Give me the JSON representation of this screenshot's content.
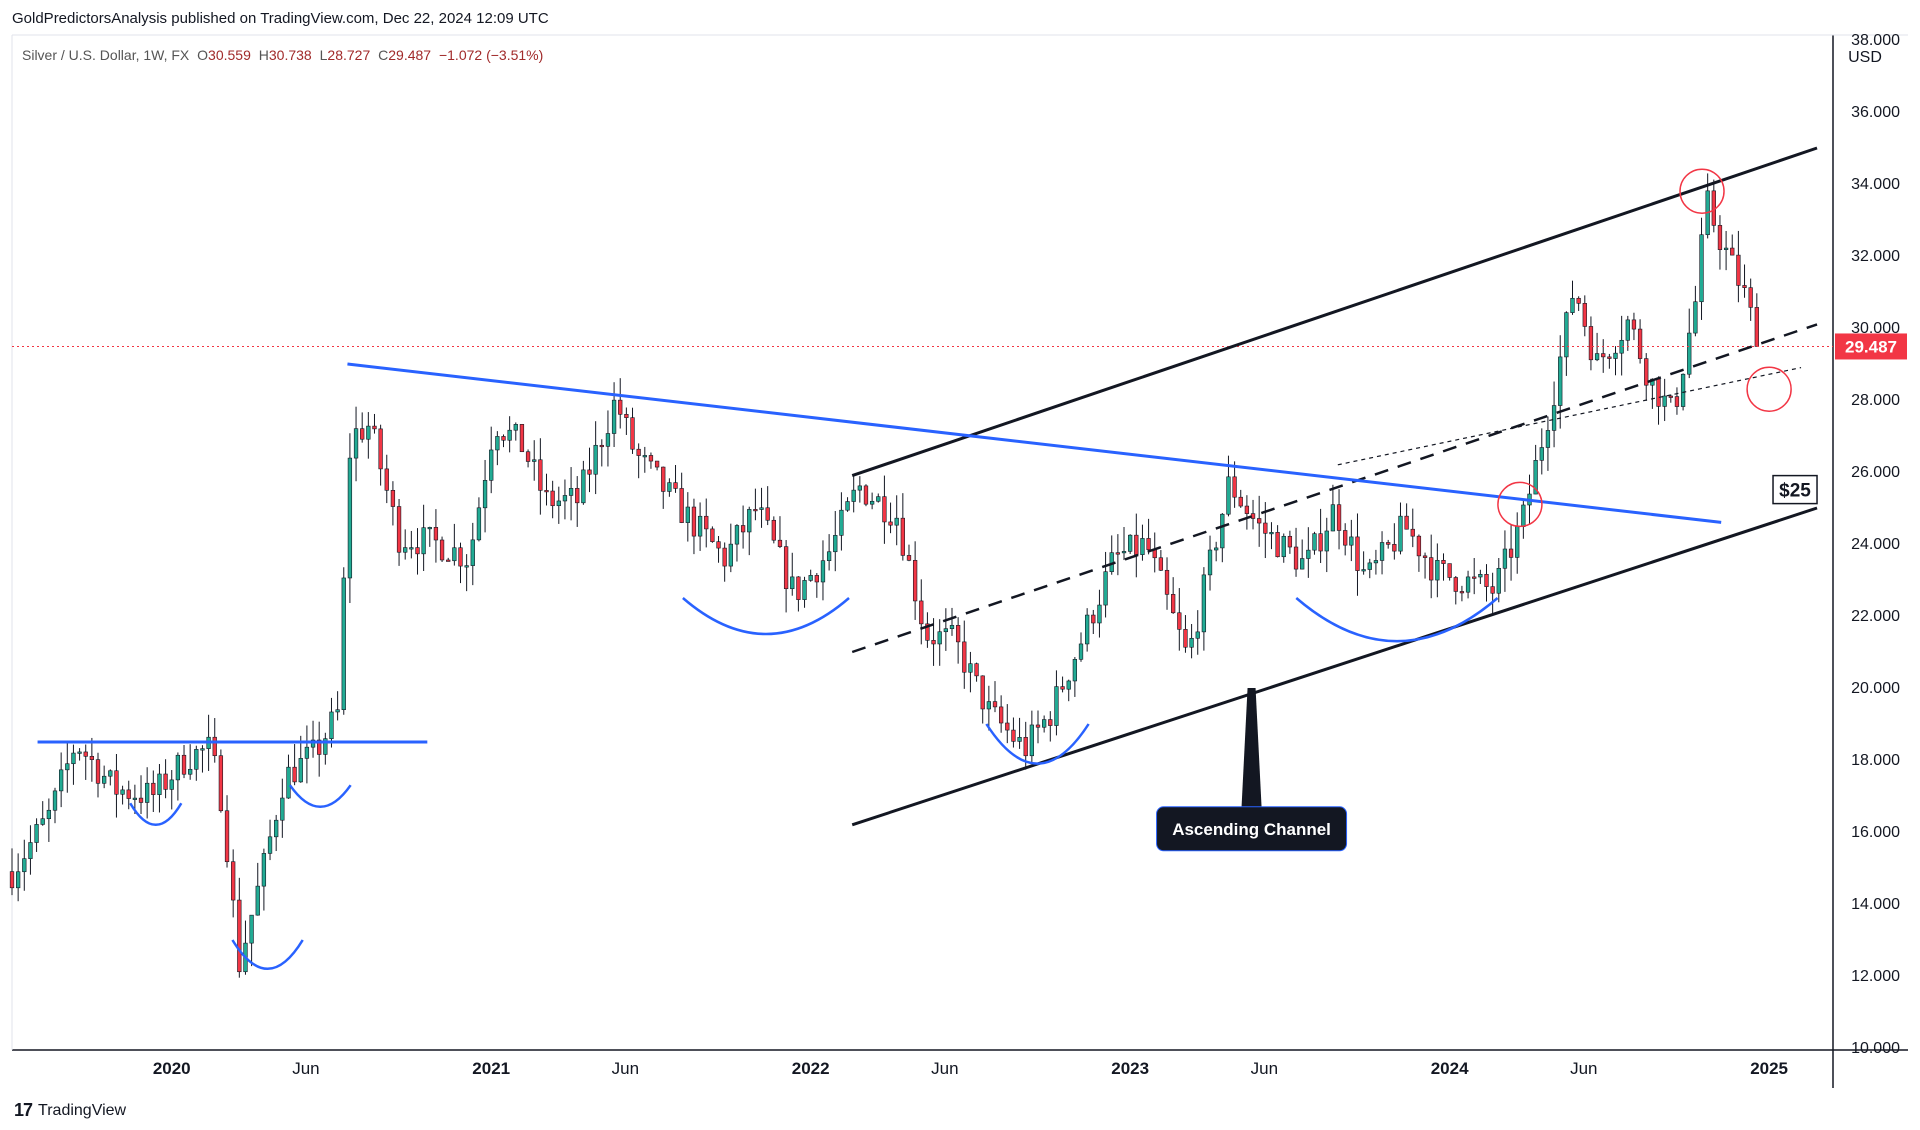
{
  "header": {
    "published": "GoldPredictorsAnalysis published on TradingView.com, Dec 22, 2024 12:09 UTC"
  },
  "legend": {
    "symbol": "Silver / U.S. Dollar, 1W, FX",
    "o_label": "O",
    "o": "30.559",
    "h_label": "H",
    "h": "30.738",
    "l_label": "L",
    "l": "28.727",
    "c_label": "C",
    "c": "29.487",
    "change": "−1.072 (−3.51%)"
  },
  "footer": {
    "brand": "TradingView",
    "logo": "17"
  },
  "colors": {
    "up": "#22ab94",
    "down": "#f23645",
    "pattern": "#2962ff",
    "channel": "#131722",
    "price_line": "#f23645",
    "highlight": "#f23645"
  },
  "chart_data": {
    "type": "candlestick",
    "currency": "USD",
    "ylim": [
      10,
      38
    ],
    "yticks": [
      "10.000",
      "12.000",
      "14.000",
      "16.000",
      "18.000",
      "20.000",
      "22.000",
      "24.000",
      "26.000",
      "28.000",
      "30.000",
      "32.000",
      "34.000",
      "36.000",
      "38.000"
    ],
    "xlim": [
      2019.5,
      2025.2
    ],
    "xticks": [
      {
        "x": 2020.0,
        "label": "2020",
        "major": true
      },
      {
        "x": 2020.42,
        "label": "Jun",
        "major": false
      },
      {
        "x": 2021.0,
        "label": "2021",
        "major": true
      },
      {
        "x": 2021.42,
        "label": "Jun",
        "major": false
      },
      {
        "x": 2022.0,
        "label": "2022",
        "major": true
      },
      {
        "x": 2022.42,
        "label": "Jun",
        "major": false
      },
      {
        "x": 2023.0,
        "label": "2023",
        "major": true
      },
      {
        "x": 2023.42,
        "label": "Jun",
        "major": false
      },
      {
        "x": 2024.0,
        "label": "2024",
        "major": true
      },
      {
        "x": 2024.42,
        "label": "Jun",
        "major": false
      },
      {
        "x": 2025.0,
        "label": "2025",
        "major": true
      }
    ],
    "last_price": 29.487,
    "last_price_label": "29.487",
    "anchors": [
      [
        2019.5,
        14.9
      ],
      [
        2019.62,
        16.5
      ],
      [
        2019.7,
        18.5
      ],
      [
        2019.82,
        17.2
      ],
      [
        2019.94,
        17.0
      ],
      [
        2020.05,
        18.1
      ],
      [
        2020.12,
        18.3
      ],
      [
        2020.16,
        16.8
      ],
      [
        2020.21,
        12.3
      ],
      [
        2020.29,
        15.1
      ],
      [
        2020.35,
        17.5
      ],
      [
        2020.45,
        18.2
      ],
      [
        2020.52,
        19.3
      ],
      [
        2020.56,
        27.0
      ],
      [
        2020.62,
        27.3
      ],
      [
        2020.71,
        24.2
      ],
      [
        2020.84,
        24.0
      ],
      [
        2020.93,
        23.6
      ],
      [
        2021.01,
        27.4
      ],
      [
        2021.1,
        26.7
      ],
      [
        2021.17,
        25.2
      ],
      [
        2021.27,
        25.2
      ],
      [
        2021.39,
        28.0
      ],
      [
        2021.45,
        26.5
      ],
      [
        2021.59,
        25.0
      ],
      [
        2021.73,
        23.6
      ],
      [
        2021.83,
        25.0
      ],
      [
        2021.95,
        22.6
      ],
      [
        2022.06,
        23.8
      ],
      [
        2022.15,
        25.6
      ],
      [
        2022.27,
        24.8
      ],
      [
        2022.36,
        21.5
      ],
      [
        2022.45,
        21.3
      ],
      [
        2022.56,
        19.3
      ],
      [
        2022.67,
        18.3
      ],
      [
        2022.75,
        19.3
      ],
      [
        2022.86,
        21.6
      ],
      [
        2022.95,
        23.6
      ],
      [
        2023.05,
        24.0
      ],
      [
        2023.18,
        20.8
      ],
      [
        2023.31,
        25.7
      ],
      [
        2023.4,
        24.5
      ],
      [
        2023.55,
        23.4
      ],
      [
        2023.64,
        25.0
      ],
      [
        2023.74,
        23.0
      ],
      [
        2023.86,
        24.5
      ],
      [
        2023.96,
        23.2
      ],
      [
        2024.04,
        23.0
      ],
      [
        2024.14,
        22.7
      ],
      [
        2024.23,
        24.7
      ],
      [
        2024.33,
        28.4
      ],
      [
        2024.39,
        31.2
      ],
      [
        2024.46,
        29.0
      ],
      [
        2024.56,
        30.2
      ],
      [
        2024.63,
        28.5
      ],
      [
        2024.7,
        27.6
      ],
      [
        2024.78,
        31.2
      ],
      [
        2024.8,
        33.6
      ],
      [
        2024.85,
        32.4
      ],
      [
        2024.92,
        31.0
      ],
      [
        2024.97,
        29.5
      ]
    ]
  },
  "annotations": {
    "channel_label": "Ascending Channel",
    "target_label": "$25"
  }
}
